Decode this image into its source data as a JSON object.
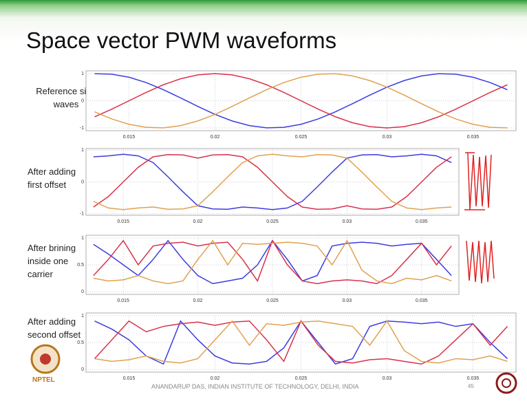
{
  "slide": {
    "title": "Space vector PWM waveforms",
    "footer": "ANANDARUP DAS, INDIAN INSTITUTE OF TECHNOLOGY, DELHI, INDIA",
    "page": "45",
    "logo": "NPTEL"
  },
  "chart_data": [
    {
      "type": "line",
      "title": "Reference sine waves",
      "x": [
        0.013,
        0.014,
        0.015,
        0.016,
        0.017,
        0.018,
        0.019,
        0.02,
        0.021,
        0.022,
        0.023,
        0.024,
        0.025,
        0.026,
        0.027,
        0.028,
        0.029,
        0.03,
        0.031,
        0.032,
        0.033,
        0.034,
        0.035,
        0.036,
        0.037
      ],
      "xlim": [
        0.0125,
        0.0375
      ],
      "xticks": [
        0.015,
        0.02,
        0.025,
        0.03,
        0.035
      ],
      "ylim": [
        -1.1,
        1.1
      ],
      "yticks": [
        -1,
        0,
        1
      ],
      "grid": true,
      "series": [
        {
          "color": "#3b3be0",
          "values": [
            0.995,
            0.978,
            0.866,
            0.669,
            0.407,
            0.105,
            -0.208,
            -0.5,
            -0.743,
            -0.914,
            -0.995,
            -0.978,
            -0.866,
            -0.669,
            -0.407,
            -0.105,
            0.208,
            0.5,
            0.743,
            0.914,
            0.995,
            0.978,
            0.866,
            0.669,
            0.407
          ]
        },
        {
          "color": "#d8304a",
          "values": [
            -0.588,
            -0.309,
            0,
            0.309,
            0.588,
            0.809,
            0.951,
            1,
            0.951,
            0.809,
            0.588,
            0.309,
            0,
            -0.309,
            -0.588,
            -0.809,
            -0.951,
            -1,
            -0.951,
            -0.809,
            -0.588,
            -0.309,
            0,
            0.309,
            0.588
          ]
        },
        {
          "color": "#e0a050",
          "values": [
            -0.407,
            -0.669,
            -0.866,
            -0.978,
            -0.995,
            -0.914,
            -0.743,
            -0.5,
            -0.208,
            0.105,
            0.407,
            0.669,
            0.866,
            0.978,
            0.995,
            0.914,
            0.743,
            0.5,
            0.208,
            -0.105,
            -0.407,
            -0.669,
            -0.866,
            -0.978,
            -0.995
          ]
        }
      ]
    },
    {
      "type": "line",
      "title": "After adding first offset",
      "x": [
        0.013,
        0.014,
        0.015,
        0.016,
        0.017,
        0.018,
        0.019,
        0.02,
        0.021,
        0.022,
        0.023,
        0.024,
        0.025,
        0.026,
        0.027,
        0.028,
        0.029,
        0.03,
        0.031,
        0.032,
        0.033,
        0.034,
        0.035,
        0.036,
        0.037
      ],
      "xlim": [
        0.0125,
        0.0375
      ],
      "xticks": [
        0.015,
        0.02,
        0.025,
        0.03,
        0.035
      ],
      "ylim": [
        -1.05,
        1.05
      ],
      "yticks": [
        -1,
        0,
        1
      ],
      "grid": true,
      "series": [
        {
          "color": "#3b3be0",
          "values": [
            0.79,
            0.82,
            0.87,
            0.82,
            0.61,
            0.16,
            -0.31,
            -0.75,
            -0.85,
            -0.86,
            -0.79,
            -0.82,
            -0.87,
            -0.82,
            -0.61,
            -0.16,
            0.31,
            0.75,
            0.85,
            0.86,
            0.79,
            0.82,
            0.87,
            0.82,
            0.61
          ]
        },
        {
          "color": "#d8304a",
          "values": [
            -0.79,
            -0.46,
            0,
            0.46,
            0.79,
            0.86,
            0.85,
            0.75,
            0.85,
            0.86,
            0.79,
            0.46,
            0,
            -0.46,
            -0.79,
            -0.86,
            -0.85,
            -0.75,
            -0.85,
            -0.86,
            -0.79,
            -0.46,
            0,
            0.46,
            0.79
          ]
        },
        {
          "color": "#e0a050",
          "values": [
            -0.61,
            -0.82,
            -0.87,
            -0.82,
            -0.79,
            -0.86,
            -0.85,
            -0.75,
            -0.31,
            0.16,
            0.61,
            0.82,
            0.87,
            0.82,
            0.79,
            0.86,
            0.85,
            0.75,
            0.31,
            -0.16,
            -0.61,
            -0.82,
            -0.87,
            -0.82,
            -0.79
          ]
        }
      ]
    },
    {
      "type": "line",
      "title": "After brining inside one carrier",
      "x": [
        0.013,
        0.014,
        0.015,
        0.016,
        0.017,
        0.018,
        0.019,
        0.02,
        0.021,
        0.022,
        0.023,
        0.024,
        0.025,
        0.026,
        0.027,
        0.028,
        0.029,
        0.03,
        0.031,
        0.032,
        0.033,
        0.034,
        0.035,
        0.036,
        0.037
      ],
      "xlim": [
        0.0125,
        0.0375
      ],
      "xticks": [
        0.015,
        0.02,
        0.025,
        0.03,
        0.035
      ],
      "ylim": [
        -0.05,
        1.05
      ],
      "yticks": [
        0,
        0.5,
        1
      ],
      "grid": true,
      "series": [
        {
          "color": "#3b3be0",
          "values": [
            0.88,
            0.7,
            0.5,
            0.3,
            0.6,
            0.95,
            0.6,
            0.3,
            0.15,
            0.2,
            0.25,
            0.5,
            0.95,
            0.6,
            0.2,
            0.3,
            0.85,
            0.9,
            0.92,
            0.9,
            0.85,
            0.88,
            0.9,
            0.6,
            0.3
          ]
        },
        {
          "color": "#d8304a",
          "values": [
            0.3,
            0.6,
            0.95,
            0.5,
            0.85,
            0.9,
            0.92,
            0.85,
            0.9,
            0.92,
            0.6,
            0.2,
            0.95,
            0.5,
            0.2,
            0.15,
            0.2,
            0.22,
            0.2,
            0.15,
            0.3,
            0.6,
            0.9,
            0.5,
            0.85
          ]
        },
        {
          "color": "#e0a050",
          "values": [
            0.25,
            0.2,
            0.22,
            0.3,
            0.2,
            0.15,
            0.2,
            0.6,
            0.95,
            0.5,
            0.9,
            0.88,
            0.9,
            0.92,
            0.9,
            0.85,
            0.5,
            0.95,
            0.4,
            0.2,
            0.15,
            0.25,
            0.22,
            0.3,
            0.2
          ]
        }
      ]
    },
    {
      "type": "line",
      "title": "After adding second offset",
      "x": [
        0.013,
        0.014,
        0.015,
        0.016,
        0.017,
        0.018,
        0.019,
        0.02,
        0.021,
        0.022,
        0.023,
        0.024,
        0.025,
        0.026,
        0.027,
        0.028,
        0.029,
        0.03,
        0.031,
        0.032,
        0.033,
        0.034,
        0.035,
        0.036,
        0.037
      ],
      "xlim": [
        0.0125,
        0.0375
      ],
      "xticks": [
        0.015,
        0.02,
        0.025,
        0.03,
        0.035
      ],
      "ylim": [
        -0.05,
        1.05
      ],
      "yticks": [
        0,
        0.5,
        1
      ],
      "grid": true,
      "series": [
        {
          "color": "#3b3be0",
          "values": [
            0.9,
            0.75,
            0.55,
            0.25,
            0.1,
            0.9,
            0.55,
            0.25,
            0.12,
            0.1,
            0.15,
            0.4,
            0.9,
            0.5,
            0.1,
            0.2,
            0.8,
            0.9,
            0.88,
            0.85,
            0.88,
            0.8,
            0.85,
            0.5,
            0.2
          ]
        },
        {
          "color": "#d8304a",
          "values": [
            0.2,
            0.55,
            0.9,
            0.7,
            0.8,
            0.85,
            0.88,
            0.82,
            0.88,
            0.9,
            0.55,
            0.15,
            0.9,
            0.45,
            0.15,
            0.12,
            0.18,
            0.2,
            0.15,
            0.1,
            0.25,
            0.55,
            0.85,
            0.45,
            0.8
          ]
        },
        {
          "color": "#e0a050",
          "values": [
            0.2,
            0.15,
            0.18,
            0.25,
            0.15,
            0.12,
            0.2,
            0.55,
            0.9,
            0.45,
            0.85,
            0.82,
            0.88,
            0.9,
            0.85,
            0.8,
            0.45,
            0.9,
            0.35,
            0.15,
            0.12,
            0.2,
            0.18,
            0.25,
            0.15
          ]
        }
      ]
    }
  ]
}
